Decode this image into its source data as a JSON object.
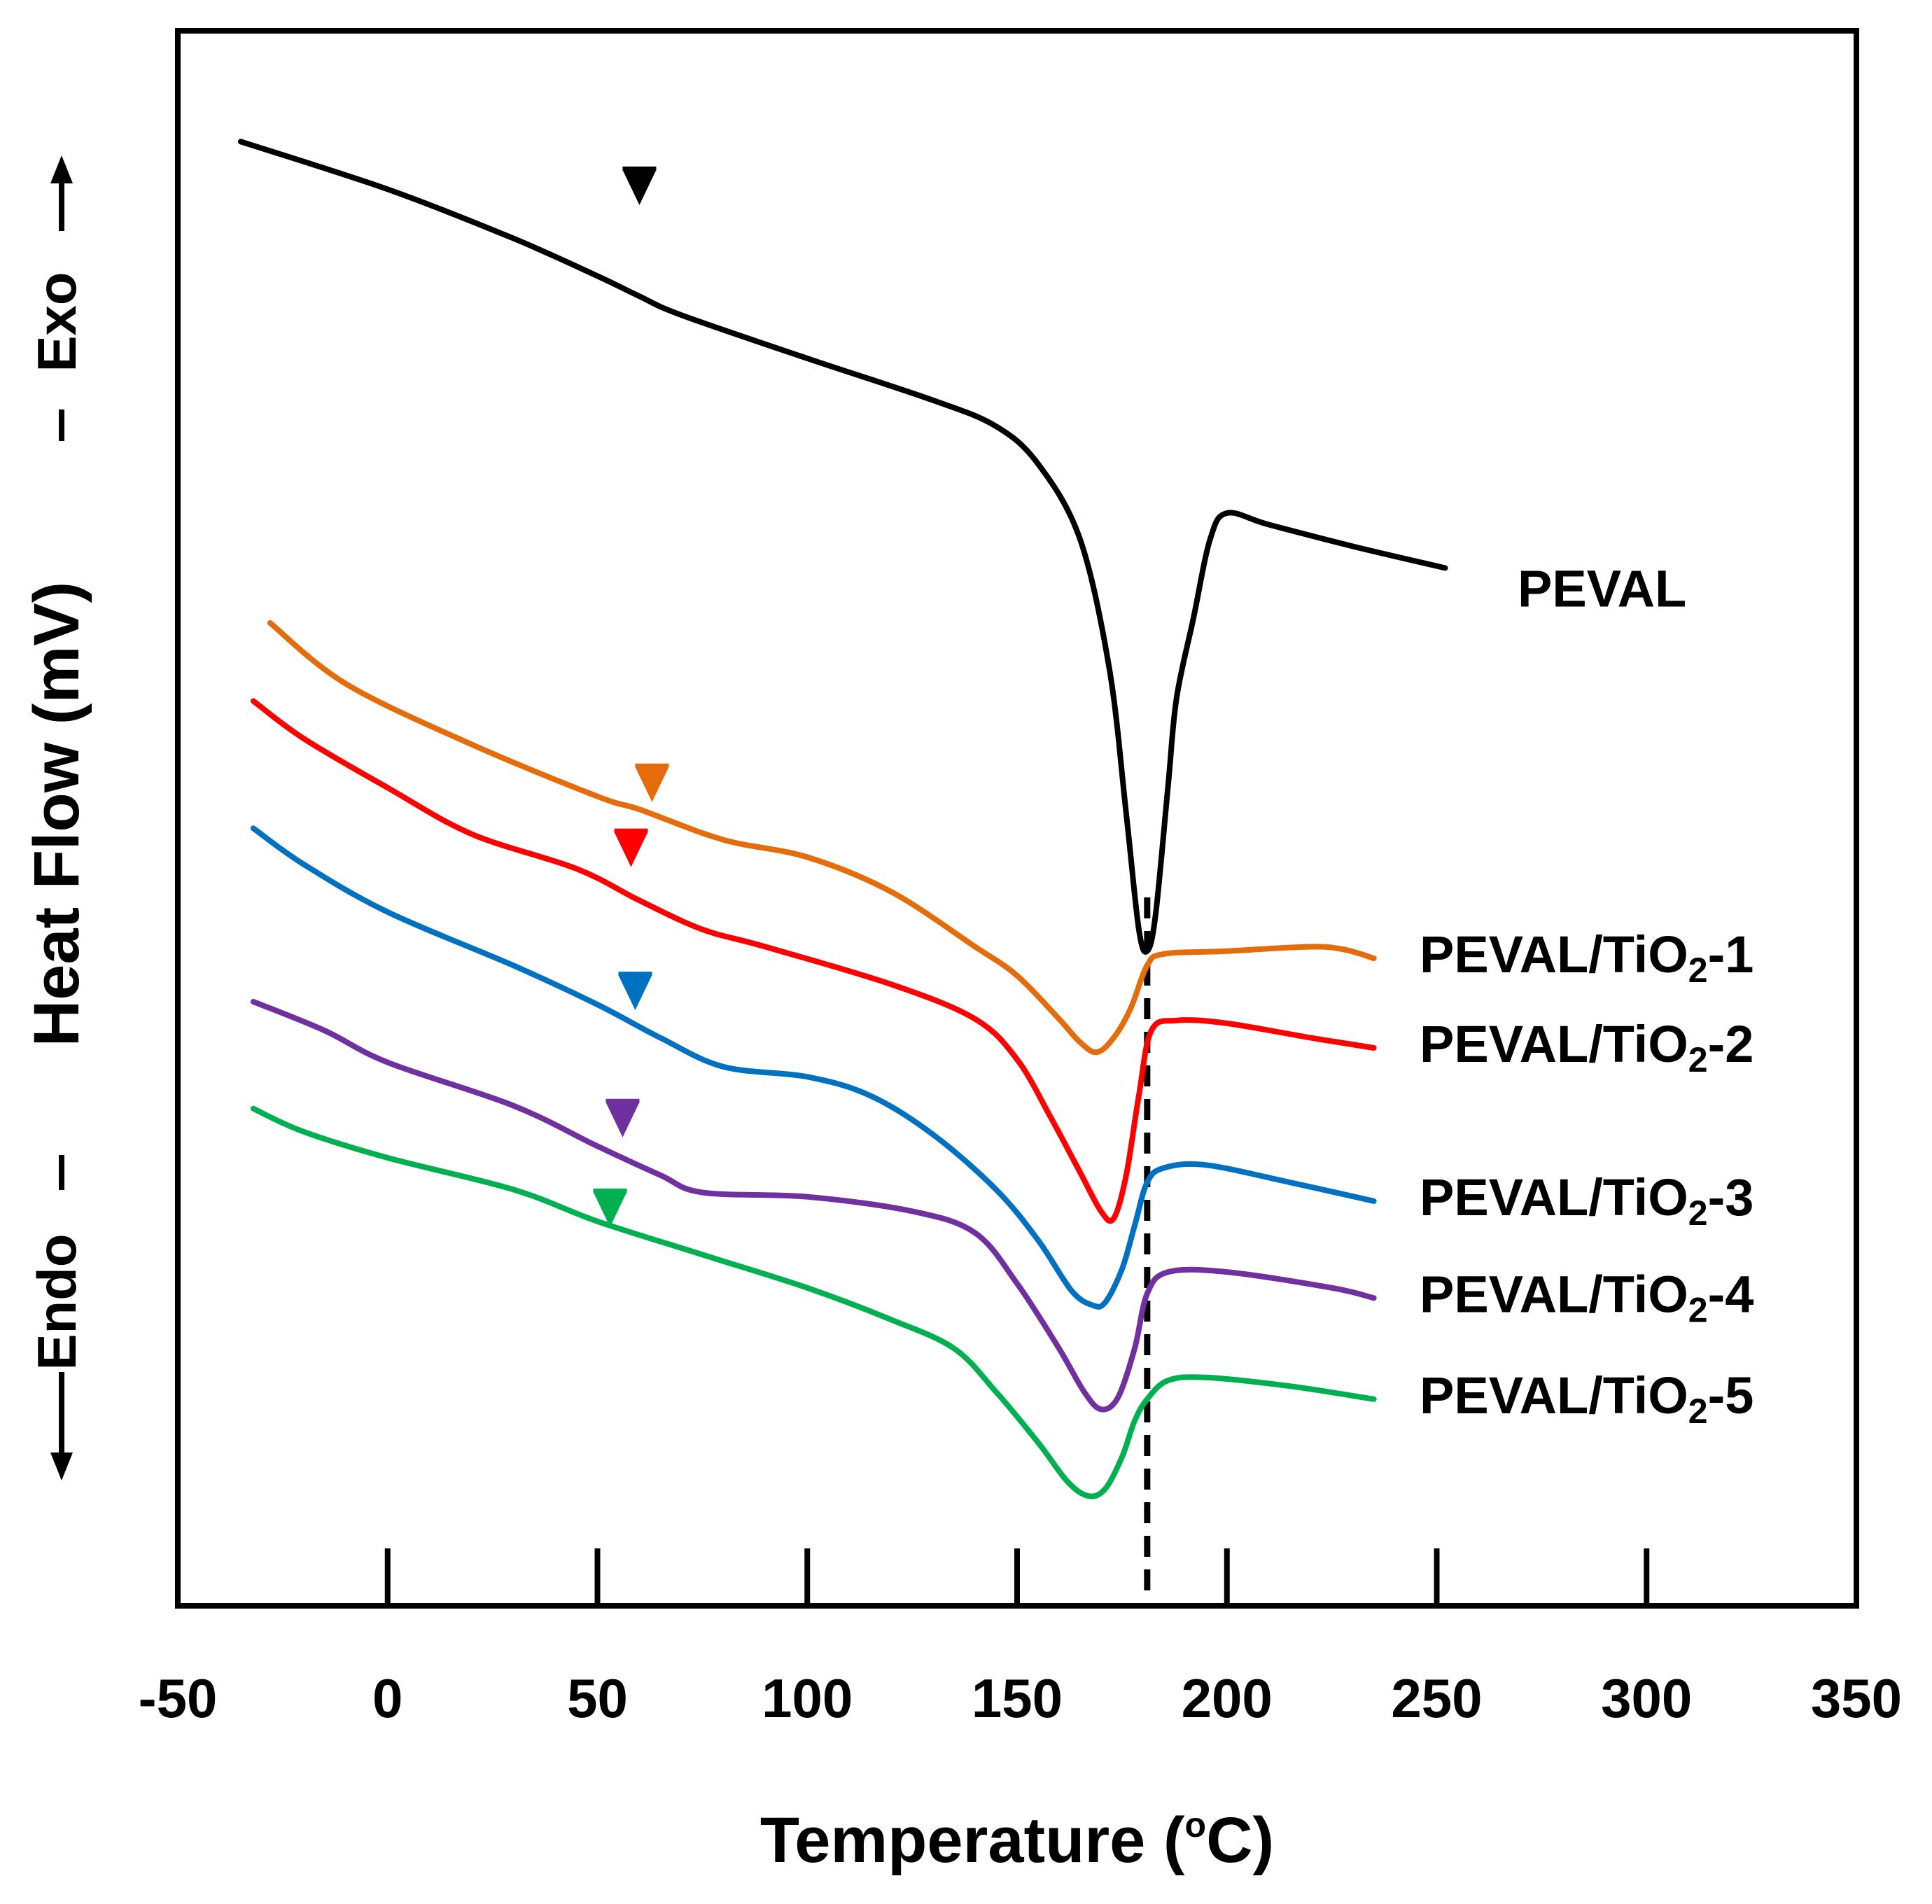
{
  "chart_data": {
    "type": "line",
    "title": "",
    "xlabel": "Temperature (",
    "xlabel_sup": "o",
    "xlabel_end": "C)",
    "ylabel": "Heat  Flow (mV)",
    "exo_label": "Exo",
    "endo_label": "Endo",
    "xlim": [
      -50,
      350
    ],
    "xticks": [
      -50,
      0,
      50,
      100,
      150,
      200,
      250,
      300,
      350
    ],
    "ylim": [
      0,
      1000
    ],
    "reference_line_x": 181,
    "series": [
      {
        "name": "PEVAL",
        "label_main": "PEVAL",
        "label_sub": "",
        "label_tail": "",
        "color": "#000000",
        "marker_x": 60,
        "marker_y": 925,
        "points": [
          [
            -35,
            965
          ],
          [
            0,
            932
          ],
          [
            30,
            898
          ],
          [
            50,
            872
          ],
          [
            60,
            858
          ],
          [
            70,
            845
          ],
          [
            100,
            815
          ],
          [
            130,
            786
          ],
          [
            145,
            768
          ],
          [
            155,
            742
          ],
          [
            165,
            690
          ],
          [
            172,
            600
          ],
          [
            176,
            500
          ],
          [
            179,
            420
          ],
          [
            181,
            405
          ],
          [
            183,
            430
          ],
          [
            186,
            520
          ],
          [
            188,
            580
          ],
          [
            192,
            635
          ],
          [
            196,
            690
          ],
          [
            200,
            708
          ],
          [
            210,
            700
          ],
          [
            230,
            685
          ],
          [
            252,
            670
          ]
        ]
      },
      {
        "name": "PEVAL/TiO2-1",
        "label_main": "PEVAL/TiO",
        "label_sub": "2",
        "label_tail": "-1",
        "color": "#e46c0a",
        "marker_x": 63,
        "marker_y": 512,
        "points": [
          [
            -28,
            632
          ],
          [
            -10,
            590
          ],
          [
            20,
            548
          ],
          [
            50,
            512
          ],
          [
            60,
            503
          ],
          [
            80,
            482
          ],
          [
            100,
            470
          ],
          [
            120,
            446
          ],
          [
            140,
            408
          ],
          [
            150,
            388
          ],
          [
            160,
            358
          ],
          [
            165,
            342
          ],
          [
            169,
            335
          ],
          [
            173,
            345
          ],
          [
            177,
            365
          ],
          [
            181,
            395
          ],
          [
            185,
            403
          ],
          [
            200,
            405
          ],
          [
            220,
            408
          ],
          [
            228,
            406
          ],
          [
            235,
            400
          ]
        ]
      },
      {
        "name": "PEVAL/TiO2-2",
        "label_main": "PEVAL/TiO",
        "label_sub": "2",
        "label_tail": "-2",
        "color": "#ff0000",
        "marker_x": 58,
        "marker_y": 467,
        "points": [
          [
            -32,
            578
          ],
          [
            -20,
            552
          ],
          [
            0,
            518
          ],
          [
            20,
            486
          ],
          [
            45,
            462
          ],
          [
            60,
            440
          ],
          [
            75,
            420
          ],
          [
            90,
            408
          ],
          [
            120,
            382
          ],
          [
            140,
            358
          ],
          [
            150,
            330
          ],
          [
            158,
            290
          ],
          [
            165,
            252
          ],
          [
            170,
            225
          ],
          [
            173,
            220
          ],
          [
            176,
            250
          ],
          [
            179,
            305
          ],
          [
            182,
            350
          ],
          [
            188,
            357
          ],
          [
            200,
            355
          ],
          [
            220,
            345
          ],
          [
            235,
            338
          ]
        ]
      },
      {
        "name": "PEVAL/TiO2-3",
        "label_main": "PEVAL/TiO",
        "label_sub": "2",
        "label_tail": "-3",
        "color": "#0070c0",
        "marker_x": 59,
        "marker_y": 368,
        "points": [
          [
            -32,
            490
          ],
          [
            -20,
            465
          ],
          [
            0,
            432
          ],
          [
            30,
            395
          ],
          [
            50,
            368
          ],
          [
            65,
            345
          ],
          [
            80,
            325
          ],
          [
            100,
            318
          ],
          [
            115,
            305
          ],
          [
            130,
            278
          ],
          [
            145,
            240
          ],
          [
            155,
            205
          ],
          [
            163,
            170
          ],
          [
            168,
            160
          ],
          [
            171,
            162
          ],
          [
            175,
            185
          ],
          [
            178,
            215
          ],
          [
            181,
            245
          ],
          [
            185,
            255
          ],
          [
            195,
            257
          ],
          [
            215,
            245
          ],
          [
            235,
            232
          ]
        ]
      },
      {
        "name": "PEVAL/TiO2-4",
        "label_main": "PEVAL/TiO",
        "label_sub": "2",
        "label_tail": "-4",
        "color": "#7030a0",
        "marker_x": 56,
        "marker_y": 280,
        "points": [
          [
            -32,
            370
          ],
          [
            -15,
            350
          ],
          [
            0,
            328
          ],
          [
            30,
            298
          ],
          [
            50,
            270
          ],
          [
            65,
            250
          ],
          [
            75,
            238
          ],
          [
            100,
            235
          ],
          [
            125,
            225
          ],
          [
            140,
            210
          ],
          [
            150,
            175
          ],
          [
            160,
            130
          ],
          [
            166,
            100
          ],
          [
            170,
            88
          ],
          [
            174,
            96
          ],
          [
            178,
            130
          ],
          [
            181,
            168
          ],
          [
            186,
            183
          ],
          [
            200,
            183
          ],
          [
            225,
            172
          ],
          [
            235,
            165
          ]
        ]
      },
      {
        "name": "PEVAL/TiO2-5",
        "label_main": "PEVAL/TiO",
        "label_sub": "2",
        "label_tail": "-5",
        "color": "#00b050",
        "marker_x": 53,
        "marker_y": 218,
        "points": [
          [
            -32,
            296
          ],
          [
            -20,
            280
          ],
          [
            0,
            262
          ],
          [
            30,
            240
          ],
          [
            50,
            218
          ],
          [
            75,
            195
          ],
          [
            100,
            172
          ],
          [
            120,
            150
          ],
          [
            135,
            130
          ],
          [
            145,
            100
          ],
          [
            155,
            65
          ],
          [
            162,
            38
          ],
          [
            167,
            28
          ],
          [
            171,
            33
          ],
          [
            175,
            55
          ],
          [
            178,
            80
          ],
          [
            181,
            95
          ],
          [
            186,
            108
          ],
          [
            195,
            110
          ],
          [
            215,
            104
          ],
          [
            235,
            95
          ]
        ]
      }
    ]
  }
}
